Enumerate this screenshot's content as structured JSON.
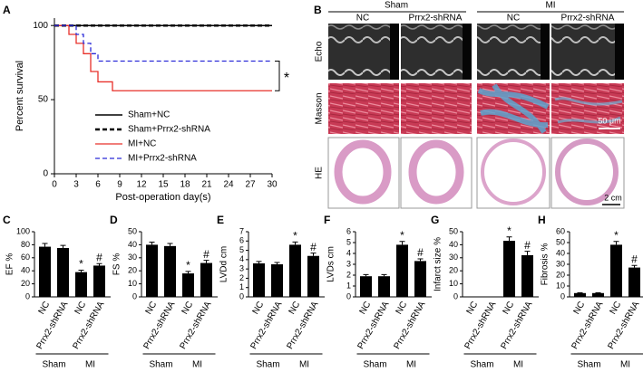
{
  "chart_data": [
    {
      "type": "step",
      "panel": "A",
      "ylabel": "Percent survival",
      "xlabel": "Post-operation day(s)",
      "xlim": [
        0,
        30
      ],
      "xticks": [
        0,
        3,
        6,
        9,
        12,
        15,
        18,
        21,
        24,
        27,
        30
      ],
      "ylim": [
        0,
        105
      ],
      "yticks": [
        0,
        50,
        100
      ],
      "legend": "lower center",
      "annotations": [
        "*"
      ],
      "series": [
        {
          "name": "Sham+NC",
          "color": "#000000",
          "dash": "solid",
          "linewidth": 1.5,
          "x": [
            0,
            30
          ],
          "values": [
            100,
            100
          ]
        },
        {
          "name": "Sham+Prrx2-shRNA",
          "color": "#000000",
          "dash": "dashed",
          "linewidth": 2.5,
          "x": [
            0,
            30
          ],
          "values": [
            100,
            100
          ]
        },
        {
          "name": "MI+NC",
          "color": "#e8302a",
          "dash": "solid",
          "linewidth": 1.3,
          "x": [
            0,
            2,
            2,
            3,
            3,
            4,
            4,
            5,
            5,
            6,
            6,
            8,
            8,
            30
          ],
          "values": [
            100,
            100,
            94,
            94,
            88,
            88,
            81,
            81,
            69,
            69,
            62,
            62,
            56,
            56
          ]
        },
        {
          "name": "MI+Prrx2-shRNA",
          "color": "#2a2ad8",
          "dash": "dashed",
          "linewidth": 1.3,
          "x": [
            0,
            3,
            3,
            4,
            4,
            5,
            5,
            6,
            6,
            30
          ],
          "values": [
            100,
            100,
            94,
            94,
            88,
            88,
            81,
            81,
            76,
            76
          ]
        }
      ]
    },
    {
      "type": "bar",
      "panel": "C",
      "ylabel": "EF %",
      "color": "#000000",
      "categories": [
        "NC",
        "Prrx2-shRNA",
        "NC",
        "Prrx2-shRNA"
      ],
      "group_labels": [
        "Sham",
        "MI"
      ],
      "values": [
        77,
        75,
        38,
        48
      ],
      "errors": [
        5,
        4,
        3,
        3
      ],
      "bar_labels": [
        null,
        null,
        "*",
        "#"
      ],
      "ylim": [
        0,
        100
      ],
      "yticks": [
        0,
        20,
        40,
        60,
        80,
        100
      ]
    },
    {
      "type": "bar",
      "panel": "D",
      "ylabel": "FS %",
      "color": "#000000",
      "categories": [
        "NC",
        "Prrx2-shRNA",
        "NC",
        "Prrx2-shRNA"
      ],
      "group_labels": [
        "Sham",
        "MI"
      ],
      "values": [
        40,
        39,
        18,
        26
      ],
      "errors": [
        2,
        2,
        1.5,
        2
      ],
      "bar_labels": [
        null,
        null,
        "*",
        "#"
      ],
      "ylim": [
        0,
        50
      ],
      "yticks": [
        0,
        10,
        20,
        30,
        40,
        50
      ]
    },
    {
      "type": "bar",
      "panel": "E",
      "ylabel": "LVDd cm",
      "color": "#000000",
      "categories": [
        "NC",
        "Prrx2-shRNA",
        "NC",
        "Prrx2-shRNA"
      ],
      "group_labels": [
        "Sham",
        "MI"
      ],
      "values": [
        3.6,
        3.5,
        5.6,
        4.4
      ],
      "errors": [
        0.2,
        0.2,
        0.3,
        0.3
      ],
      "bar_labels": [
        null,
        null,
        "*",
        "#"
      ],
      "ylim": [
        0,
        7
      ],
      "yticks": [
        0,
        1,
        2,
        3,
        4,
        5,
        6,
        7
      ]
    },
    {
      "type": "bar",
      "panel": "F",
      "ylabel": "LVDs cm",
      "color": "#000000",
      "categories": [
        "NC",
        "Prrx2-shRNA",
        "NC",
        "Prrx2-shRNA"
      ],
      "group_labels": [
        "Sham",
        "MI"
      ],
      "values": [
        1.9,
        1.9,
        4.8,
        3.3
      ],
      "errors": [
        0.15,
        0.15,
        0.3,
        0.2
      ],
      "bar_labels": [
        null,
        null,
        "*",
        "#"
      ],
      "ylim": [
        0,
        6
      ],
      "yticks": [
        0,
        1,
        2,
        3,
        4,
        5,
        6
      ]
    },
    {
      "type": "bar",
      "panel": "G",
      "ylabel": "Infarct size %",
      "color": "#000000",
      "categories": [
        "NC",
        "Prrx2-shRNA",
        "NC",
        "Prrx2-shRNA"
      ],
      "group_labels": [
        "Sham",
        "MI"
      ],
      "values": [
        0,
        0,
        43,
        32
      ],
      "errors": [
        0,
        0,
        3,
        3
      ],
      "bar_labels": [
        null,
        null,
        "*",
        "#"
      ],
      "ylim": [
        0,
        50
      ],
      "yticks": [
        0,
        10,
        20,
        30,
        40,
        50
      ]
    },
    {
      "type": "bar",
      "panel": "H",
      "ylabel": "Fibrosis %",
      "color": "#000000",
      "categories": [
        "NC",
        "Prrx2-shRNA",
        "NC",
        "Prrx2-shRNA"
      ],
      "group_labels": [
        "Sham",
        "MI"
      ],
      "values": [
        3.5,
        3.5,
        48,
        27
      ],
      "errors": [
        0.3,
        0.3,
        3,
        2
      ],
      "bar_labels": [
        null,
        null,
        "*",
        "#"
      ],
      "ylim": [
        0,
        60
      ],
      "yticks": [
        0,
        10,
        20,
        30,
        40,
        50,
        60
      ]
    }
  ],
  "image_panel": {
    "panel": "B",
    "groups": [
      "Sham",
      "MI"
    ],
    "columns": [
      "NC",
      "Prrx2-shRNA",
      "NC",
      "Prrx2-shRNA"
    ],
    "rows": [
      "Echo",
      "Masson",
      "HE"
    ],
    "scale_bars": [
      "50 μm",
      "2 cm"
    ]
  }
}
